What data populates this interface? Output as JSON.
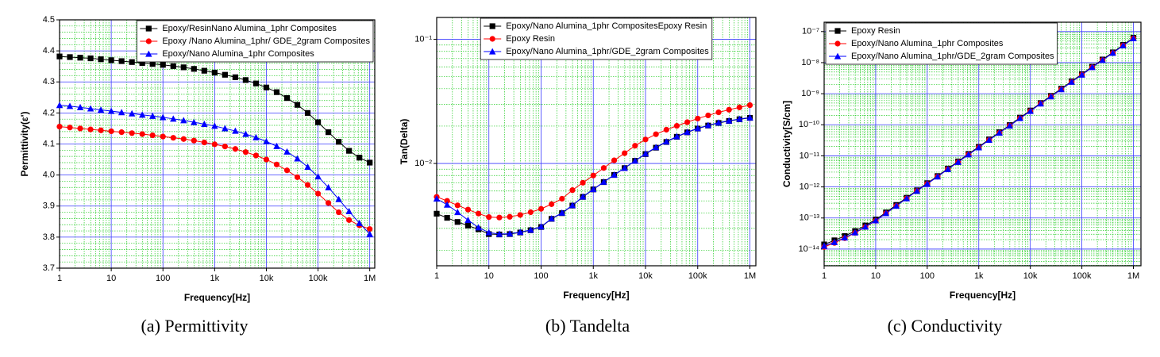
{
  "chart_data": [
    {
      "type": "line",
      "caption": "(a) Permittivity",
      "xlabel": "Frequency[Hz]",
      "ylabel": "Permittivity(ε')",
      "xscale": "log",
      "yscale": "linear",
      "grid": true,
      "legend": "upper right",
      "xlim": [
        1,
        1250000
      ],
      "ylim": [
        3.7,
        4.5
      ],
      "xticks": [
        1,
        10,
        100,
        {
          "value": 1000,
          "label": "1k"
        },
        {
          "value": 10000,
          "label": "10k"
        },
        {
          "value": 100000,
          "label": "100k"
        },
        {
          "value": 1000000,
          "label": "1M"
        }
      ],
      "yticks": [
        {
          "value": 3.7,
          "label": "3.7"
        },
        {
          "value": 3.8,
          "label": "3.8"
        },
        {
          "value": 3.9,
          "label": "3.9"
        },
        {
          "value": 4.0,
          "label": "4.0"
        },
        {
          "value": 4.1,
          "label": "4.1"
        },
        {
          "value": 4.2,
          "label": "4.2"
        },
        {
          "value": 4.3,
          "label": "4.3"
        },
        {
          "value": 4.4,
          "label": "4.4"
        },
        {
          "value": 4.5,
          "label": "4.5"
        }
      ],
      "x": [
        1,
        1.585,
        2.512,
        3.981,
        6.31,
        10,
        15.85,
        25.12,
        39.81,
        63.1,
        100,
        158.5,
        251.2,
        398.1,
        631,
        1000,
        1585,
        2512,
        3981,
        6310,
        10000,
        15850,
        25120,
        39810,
        63100,
        100000,
        158500,
        251200,
        398100,
        631000,
        1000000
      ],
      "series": [
        {
          "name": "Epoxy/ResinNano Alumina_1phr Composites",
          "color": "#000000",
          "marker": "square",
          "values": [
            4.382,
            4.38,
            4.378,
            4.376,
            4.373,
            4.37,
            4.367,
            4.364,
            4.361,
            4.358,
            4.355,
            4.351,
            4.347,
            4.342,
            4.336,
            4.33,
            4.323,
            4.315,
            4.306,
            4.295,
            4.282,
            4.267,
            4.248,
            4.226,
            4.2,
            4.17,
            4.138,
            4.107,
            4.078,
            4.056,
            4.04
          ]
        },
        {
          "name": "Epoxy /Nano Alumina_1phr/ GDE_2gram Composites",
          "color": "#ff0000",
          "marker": "circle",
          "values": [
            4.156,
            4.153,
            4.15,
            4.147,
            4.144,
            4.141,
            4.138,
            4.135,
            4.132,
            4.128,
            4.124,
            4.12,
            4.116,
            4.111,
            4.105,
            4.099,
            4.092,
            4.084,
            4.074,
            4.063,
            4.05,
            4.034,
            4.015,
            3.993,
            3.968,
            3.94,
            3.91,
            3.88,
            3.855,
            3.838,
            3.826
          ]
        },
        {
          "name": "Epoxy/Nano Alumina_1phr Composites",
          "color": "#0000ff",
          "marker": "triangle",
          "values": [
            4.225,
            4.222,
            4.218,
            4.214,
            4.21,
            4.206,
            4.202,
            4.198,
            4.194,
            4.19,
            4.186,
            4.181,
            4.176,
            4.17,
            4.164,
            4.158,
            4.15,
            4.142,
            4.132,
            4.121,
            4.108,
            4.093,
            4.075,
            4.053,
            4.026,
            3.995,
            3.96,
            3.922,
            3.883,
            3.845,
            3.81
          ]
        }
      ]
    },
    {
      "type": "line",
      "caption": "(b) Tandelta",
      "xlabel": "Frequency[Hz]",
      "ylabel": "Tan(Delta)",
      "xscale": "log",
      "yscale": "log",
      "grid": true,
      "legend": "upper center",
      "xlim": [
        1,
        1300000
      ],
      "ylim": [
        0.0015,
        0.15
      ],
      "xticks": [
        1,
        10,
        100,
        {
          "value": 1000,
          "label": "1k"
        },
        {
          "value": 10000,
          "label": "10k"
        },
        {
          "value": 100000,
          "label": "100k"
        },
        {
          "value": 1000000,
          "label": "1M"
        }
      ],
      "yticks": [
        {
          "value": 0.01,
          "label": "10⁻²"
        },
        {
          "value": 0.1,
          "label": "10⁻¹"
        }
      ],
      "x": [
        1,
        1.585,
        2.512,
        3.981,
        6.31,
        10,
        15.85,
        25.12,
        39.81,
        63.1,
        100,
        158.5,
        251.2,
        398.1,
        631,
        1000,
        1585,
        2512,
        3981,
        6310,
        10000,
        15850,
        25120,
        39810,
        63100,
        100000,
        158500,
        251200,
        398100,
        631000,
        1000000
      ],
      "series": [
        {
          "name": "Epoxy/Nano Alumina_1phr CompositesEpoxy Resin",
          "color": "#000000",
          "marker": "square",
          "values": [
            0.00394,
            0.00365,
            0.00338,
            0.00316,
            0.00295,
            0.0027,
            0.00268,
            0.0027,
            0.00278,
            0.0029,
            0.00308,
            0.00358,
            0.00398,
            0.00458,
            0.00538,
            0.00618,
            0.00708,
            0.00808,
            0.00918,
            0.0105,
            0.0119,
            0.0134,
            0.0149,
            0.0164,
            0.0178,
            0.0191,
            0.0202,
            0.0212,
            0.022,
            0.0227,
            0.0233
          ]
        },
        {
          "name": "Epoxy Resin",
          "color": "#ff0000",
          "marker": "circle",
          "values": [
            0.00538,
            0.005,
            0.0046,
            0.00425,
            0.00395,
            0.0037,
            0.00367,
            0.00372,
            0.00385,
            0.00405,
            0.00431,
            0.0047,
            0.0052,
            0.0061,
            0.007,
            0.008,
            0.0092,
            0.0106,
            0.0121,
            0.0139,
            0.0156,
            0.0172,
            0.0187,
            0.0201,
            0.0215,
            0.023,
            0.0244,
            0.0258,
            0.0271,
            0.0283,
            0.0295
          ]
        },
        {
          "name": "Epoxy/Nano Alumina_1phr/GDE_2gram Composites",
          "color": "#0000ff",
          "marker": "triangle",
          "values": [
            0.0052,
            0.00465,
            0.00405,
            0.0035,
            0.00305,
            0.00278,
            0.0027,
            0.00272,
            0.0028,
            0.00292,
            0.0031,
            0.0036,
            0.004,
            0.0046,
            0.0054,
            0.0062,
            0.0071,
            0.0081,
            0.0092,
            0.0105,
            0.012,
            0.0135,
            0.015,
            0.0165,
            0.0179,
            0.0192,
            0.0203,
            0.0213,
            0.0221,
            0.0228,
            0.0234
          ]
        }
      ]
    },
    {
      "type": "line",
      "caption": "(c) Conductivity",
      "xlabel": "Frequency[Hz]",
      "ylabel": "Conductivity[S/cm]",
      "xscale": "log",
      "yscale": "log",
      "grid": true,
      "legend": "upper left",
      "xlim": [
        1,
        1400000
      ],
      "ylim": [
        2.9e-15,
        2e-07
      ],
      "xticks": [
        1,
        10,
        100,
        {
          "value": 1000,
          "label": "1k"
        },
        {
          "value": 10000,
          "label": "10k"
        },
        {
          "value": 100000,
          "label": "100k"
        },
        {
          "value": 1000000,
          "label": "1M"
        }
      ],
      "yticks": [
        {
          "value": 1e-14,
          "label": "10⁻¹⁴"
        },
        {
          "value": 1e-13,
          "label": "10⁻¹³"
        },
        {
          "value": 1e-12,
          "label": "10⁻¹²"
        },
        {
          "value": 1e-11,
          "label": "10⁻¹¹"
        },
        {
          "value": 1e-10,
          "label": "10⁻¹⁰"
        },
        {
          "value": 1e-09,
          "label": "10⁻⁹"
        },
        {
          "value": 1e-08,
          "label": "10⁻⁸"
        },
        {
          "value": 1e-07,
          "label": "10⁻⁷"
        }
      ],
      "x": [
        1,
        1.585,
        2.512,
        3.981,
        6.31,
        10,
        15.85,
        25.12,
        39.81,
        63.1,
        100,
        158.5,
        251.2,
        398.1,
        631,
        1000,
        1585,
        2512,
        3981,
        6310,
        10000,
        15850,
        25120,
        39810,
        63100,
        100000,
        158500,
        251200,
        398100,
        631000,
        1000000
      ],
      "series": [
        {
          "name": "Epoxy Resin",
          "color": "#000000",
          "marker": "square",
          "values": [
            1.41e-14,
            1.91e-14,
            2.63e-14,
            3.8e-14,
            5.75e-14,
            8.91e-14,
            1.51e-13,
            2.63e-13,
            4.47e-13,
            7.76e-13,
            1.32e-12,
            2.24e-12,
            3.89e-12,
            6.61e-12,
            1.15e-11,
            1.95e-11,
            3.39e-11,
            5.75e-11,
            9.77e-11,
            1.7e-10,
            2.88e-10,
            5.01e-10,
            8.51e-10,
            1.45e-09,
            2.51e-09,
            4.27e-09,
            7.41e-09,
            1.26e-08,
            2.14e-08,
            3.72e-08,
            6.31e-08
          ]
        },
        {
          "name": "Epoxy/Nano Alumina_1phr Composites",
          "color": "#ff0000",
          "marker": "circle",
          "values": [
            1.17e-14,
            1.58e-14,
            2.24e-14,
            3.31e-14,
            5.13e-14,
            8.13e-14,
            1.41e-13,
            2.45e-13,
            4.27e-13,
            7.41e-13,
            1.26e-12,
            2.14e-12,
            3.72e-12,
            6.31e-12,
            1.1e-11,
            1.86e-11,
            3.24e-11,
            5.5e-11,
            9.33e-11,
            1.62e-10,
            2.75e-10,
            4.79e-10,
            8.13e-10,
            1.38e-09,
            2.4e-09,
            4.07e-09,
            7.08e-09,
            1.2e-08,
            2.04e-08,
            3.55e-08,
            6.03e-08
          ]
        },
        {
          "name": "Epoxy/Nano Alumina_1phr/GDE_2gram Composites",
          "color": "#0000ff",
          "marker": "triangle",
          "values": [
            1.26e-14,
            1.66e-14,
            2.34e-14,
            3.39e-14,
            5.25e-14,
            8.32e-14,
            1.41e-13,
            2.45e-13,
            4.27e-13,
            7.41e-13,
            1.26e-12,
            2.14e-12,
            3.72e-12,
            6.31e-12,
            1.1e-11,
            1.86e-11,
            3.24e-11,
            5.5e-11,
            9.33e-11,
            1.62e-10,
            2.75e-10,
            4.79e-10,
            8.13e-10,
            1.38e-09,
            2.4e-09,
            4.07e-09,
            7.08e-09,
            1.2e-08,
            2.04e-08,
            3.55e-08,
            6.03e-08
          ]
        }
      ]
    }
  ]
}
